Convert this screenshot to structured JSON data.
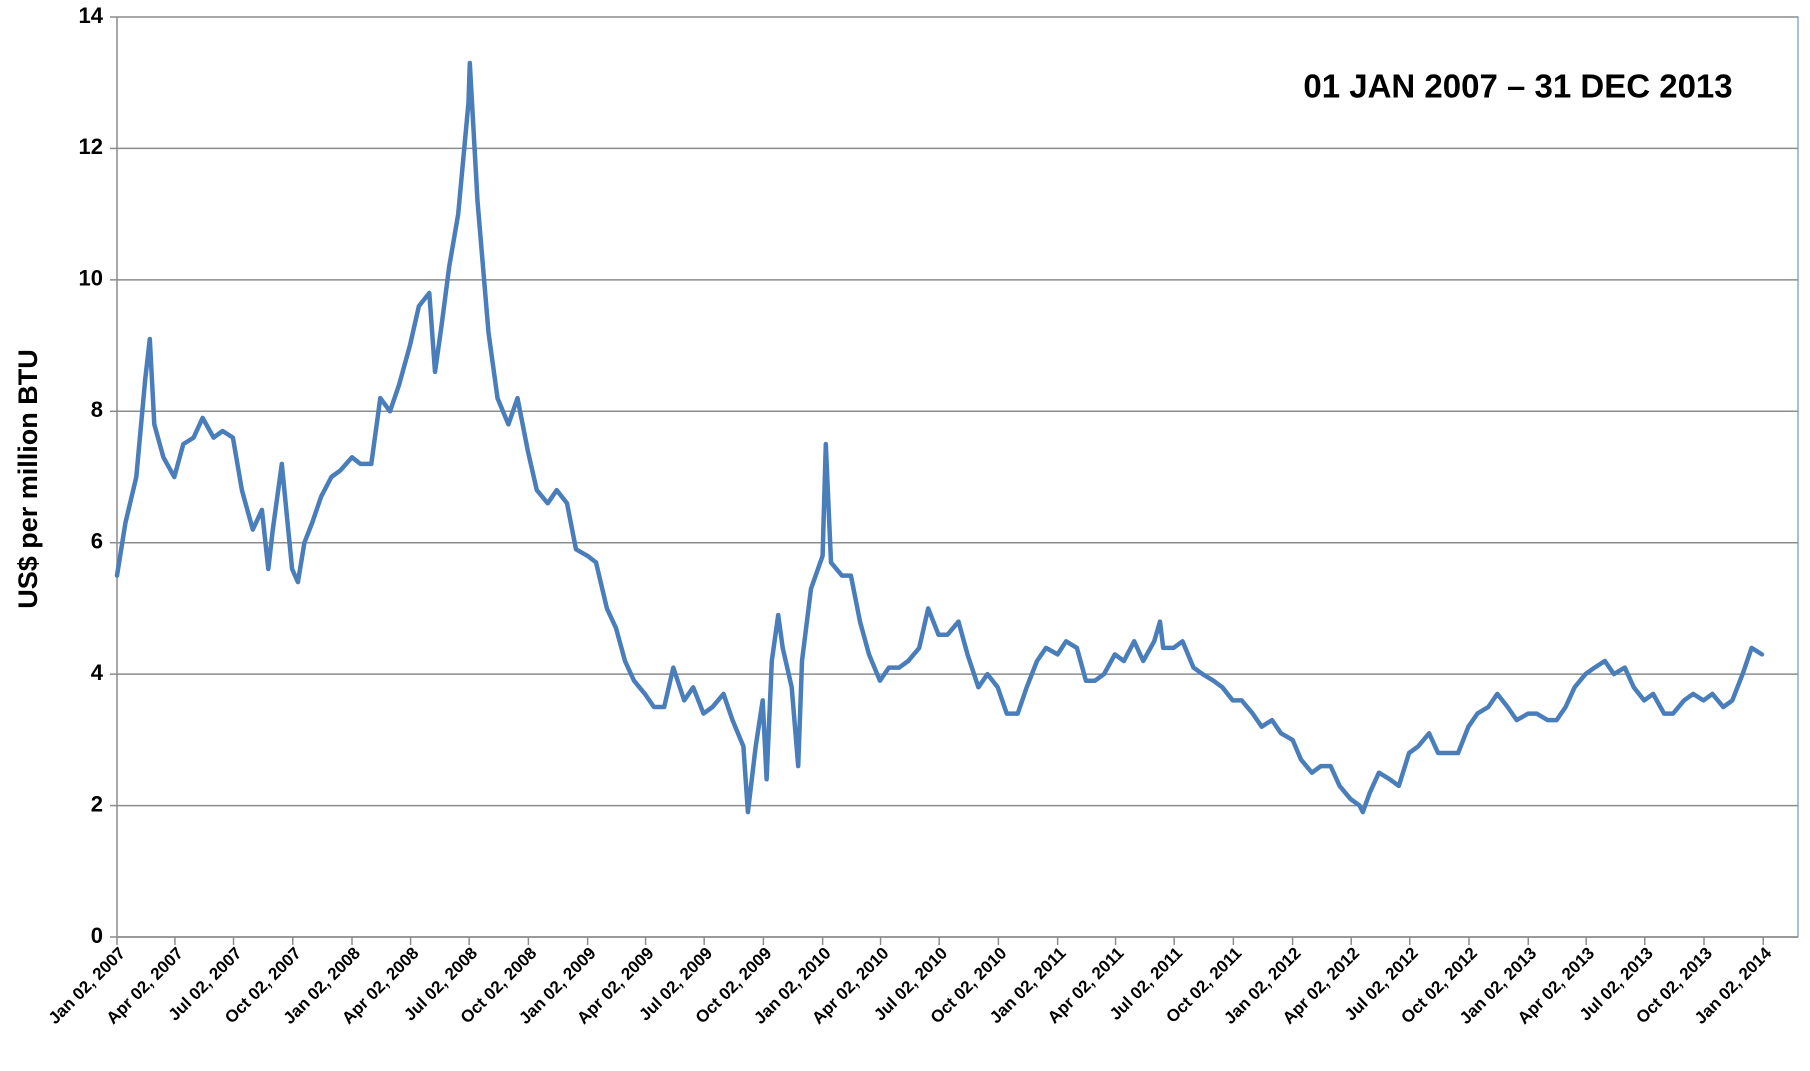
{
  "chart_data": {
    "type": "line",
    "annotation": "01 JAN 2007 – 31 DEC 2013",
    "y_label": "US$ per million BTU",
    "color": "#4a7ebb",
    "grid": true,
    "ylim": [
      0,
      14
    ],
    "yticks": [
      0,
      2,
      4,
      6,
      8,
      10,
      12,
      14
    ],
    "xlim": [
      "2007-01-02",
      "2014-02-25"
    ],
    "xticks": [
      {
        "value": "2007-01-02",
        "label": "Jan 02, 2007"
      },
      {
        "value": "2007-04-02",
        "label": "Apr 02, 2007"
      },
      {
        "value": "2007-07-02",
        "label": "Jul 02, 2007"
      },
      {
        "value": "2007-10-02",
        "label": "Oct 02, 2007"
      },
      {
        "value": "2008-01-02",
        "label": "Jan 02, 2008"
      },
      {
        "value": "2008-04-02",
        "label": "Apr 02, 2008"
      },
      {
        "value": "2008-07-02",
        "label": "Jul 02, 2008"
      },
      {
        "value": "2008-10-02",
        "label": "Oct 02, 2008"
      },
      {
        "value": "2009-01-02",
        "label": "Jan 02, 2009"
      },
      {
        "value": "2009-04-02",
        "label": "Apr 02, 2009"
      },
      {
        "value": "2009-07-02",
        "label": "Jul 02, 2009"
      },
      {
        "value": "2009-10-02",
        "label": "Oct 02, 2009"
      },
      {
        "value": "2010-01-02",
        "label": "Jan 02, 2010"
      },
      {
        "value": "2010-04-02",
        "label": "Apr 02, 2010"
      },
      {
        "value": "2010-07-02",
        "label": "Jul 02, 2010"
      },
      {
        "value": "2010-10-02",
        "label": "Oct 02, 2010"
      },
      {
        "value": "2011-01-02",
        "label": "Jan 02, 2011"
      },
      {
        "value": "2011-04-02",
        "label": "Apr 02, 2011"
      },
      {
        "value": "2011-07-02",
        "label": "Jul 02, 2011"
      },
      {
        "value": "2011-10-02",
        "label": "Oct 02, 2011"
      },
      {
        "value": "2012-01-02",
        "label": "Jan 02, 2012"
      },
      {
        "value": "2012-04-02",
        "label": "Apr 02, 2012"
      },
      {
        "value": "2012-07-02",
        "label": "Jul 02, 2012"
      },
      {
        "value": "2012-10-02",
        "label": "Oct 02, 2012"
      },
      {
        "value": "2013-01-02",
        "label": "Jan 02, 2013"
      },
      {
        "value": "2013-04-02",
        "label": "Apr 02, 2013"
      },
      {
        "value": "2013-07-02",
        "label": "Jul 02, 2013"
      },
      {
        "value": "2013-10-02",
        "label": "Oct 02, 2013"
      },
      {
        "value": "2014-01-02",
        "label": "Jan 02, 2014"
      }
    ],
    "x": [
      "2007-01-02",
      "2007-01-15",
      "2007-02-01",
      "2007-02-15",
      "2007-02-22",
      "2007-03-01",
      "2007-03-15",
      "2007-04-01",
      "2007-04-15",
      "2007-05-01",
      "2007-05-15",
      "2007-06-01",
      "2007-06-15",
      "2007-07-01",
      "2007-07-15",
      "2007-08-01",
      "2007-08-15",
      "2007-08-25",
      "2007-09-01",
      "2007-09-15",
      "2007-10-01",
      "2007-10-10",
      "2007-10-20",
      "2007-11-01",
      "2007-11-15",
      "2007-12-01",
      "2007-12-15",
      "2008-01-02",
      "2008-01-15",
      "2008-02-01",
      "2008-02-15",
      "2008-03-01",
      "2008-03-15",
      "2008-04-01",
      "2008-04-15",
      "2008-05-01",
      "2008-05-10",
      "2008-05-20",
      "2008-06-01",
      "2008-06-15",
      "2008-07-01",
      "2008-07-03",
      "2008-07-15",
      "2008-08-01",
      "2008-08-15",
      "2008-09-01",
      "2008-09-15",
      "2008-10-01",
      "2008-10-15",
      "2008-11-01",
      "2008-11-15",
      "2008-12-01",
      "2008-12-15",
      "2009-01-02",
      "2009-01-15",
      "2009-02-01",
      "2009-02-15",
      "2009-03-01",
      "2009-03-15",
      "2009-04-01",
      "2009-04-15",
      "2009-05-01",
      "2009-05-15",
      "2009-06-01",
      "2009-06-15",
      "2009-07-01",
      "2009-07-15",
      "2009-08-01",
      "2009-08-15",
      "2009-09-01",
      "2009-09-08",
      "2009-09-20",
      "2009-10-01",
      "2009-10-07",
      "2009-10-15",
      "2009-10-25",
      "2009-11-01",
      "2009-11-15",
      "2009-11-25",
      "2009-12-01",
      "2009-12-15",
      "2010-01-02",
      "2010-01-07",
      "2010-01-15",
      "2010-02-01",
      "2010-02-15",
      "2010-03-01",
      "2010-03-15",
      "2010-04-01",
      "2010-04-15",
      "2010-05-01",
      "2010-05-15",
      "2010-06-01",
      "2010-06-15",
      "2010-07-01",
      "2010-07-15",
      "2010-08-01",
      "2010-08-15",
      "2010-09-01",
      "2010-09-15",
      "2010-10-01",
      "2010-10-15",
      "2010-11-01",
      "2010-11-15",
      "2010-12-01",
      "2010-12-15",
      "2011-01-02",
      "2011-01-15",
      "2011-02-01",
      "2011-02-15",
      "2011-03-01",
      "2011-03-15",
      "2011-04-01",
      "2011-04-15",
      "2011-05-01",
      "2011-05-15",
      "2011-06-01",
      "2011-06-10",
      "2011-06-15",
      "2011-07-01",
      "2011-07-15",
      "2011-08-01",
      "2011-08-15",
      "2011-09-01",
      "2011-09-15",
      "2011-10-01",
      "2011-10-15",
      "2011-11-01",
      "2011-11-15",
      "2011-12-01",
      "2011-12-15",
      "2012-01-02",
      "2012-01-15",
      "2012-02-01",
      "2012-02-15",
      "2012-03-01",
      "2012-03-15",
      "2012-04-01",
      "2012-04-15",
      "2012-04-20",
      "2012-05-01",
      "2012-05-15",
      "2012-06-01",
      "2012-06-15",
      "2012-07-01",
      "2012-07-15",
      "2012-08-01",
      "2012-08-15",
      "2012-09-01",
      "2012-09-15",
      "2012-10-01",
      "2012-10-15",
      "2012-11-01",
      "2012-11-15",
      "2012-12-01",
      "2012-12-15",
      "2013-01-02",
      "2013-01-15",
      "2013-02-01",
      "2013-02-15",
      "2013-03-01",
      "2013-03-15",
      "2013-04-01",
      "2013-04-15",
      "2013-05-01",
      "2013-05-15",
      "2013-06-01",
      "2013-06-15",
      "2013-07-01",
      "2013-07-15",
      "2013-08-01",
      "2013-08-15",
      "2013-09-01",
      "2013-09-15",
      "2013-10-01",
      "2013-10-15",
      "2013-11-01",
      "2013-11-15",
      "2013-12-01",
      "2013-12-15",
      "2013-12-31"
    ],
    "values": [
      5.5,
      6.3,
      7.0,
      8.5,
      9.1,
      7.8,
      7.3,
      7.0,
      7.5,
      7.6,
      7.9,
      7.6,
      7.7,
      7.6,
      6.8,
      6.2,
      6.5,
      5.6,
      6.2,
      7.2,
      5.6,
      5.4,
      6.0,
      6.3,
      6.7,
      7.0,
      7.1,
      7.3,
      7.2,
      7.2,
      8.2,
      8.0,
      8.4,
      9.0,
      9.6,
      9.8,
      8.6,
      9.3,
      10.2,
      11.0,
      12.7,
      13.3,
      11.2,
      9.2,
      8.2,
      7.8,
      8.2,
      7.4,
      6.8,
      6.6,
      6.8,
      6.6,
      5.9,
      5.8,
      5.7,
      5.0,
      4.7,
      4.2,
      3.9,
      3.7,
      3.5,
      3.5,
      4.1,
      3.6,
      3.8,
      3.4,
      3.5,
      3.7,
      3.3,
      2.9,
      1.9,
      2.9,
      3.6,
      2.4,
      4.2,
      4.9,
      4.4,
      3.8,
      2.6,
      4.2,
      5.3,
      5.8,
      7.5,
      5.7,
      5.5,
      5.5,
      4.8,
      4.3,
      3.9,
      4.1,
      4.1,
      4.2,
      4.4,
      5.0,
      4.6,
      4.6,
      4.8,
      4.3,
      3.8,
      4.0,
      3.8,
      3.4,
      3.4,
      3.8,
      4.2,
      4.4,
      4.3,
      4.5,
      4.4,
      3.9,
      3.9,
      4.0,
      4.3,
      4.2,
      4.5,
      4.2,
      4.5,
      4.8,
      4.4,
      4.4,
      4.5,
      4.1,
      4.0,
      3.9,
      3.8,
      3.6,
      3.6,
      3.4,
      3.2,
      3.3,
      3.1,
      3.0,
      2.7,
      2.5,
      2.6,
      2.6,
      2.3,
      2.1,
      2.0,
      1.9,
      2.2,
      2.5,
      2.4,
      2.3,
      2.8,
      2.9,
      3.1,
      2.8,
      2.8,
      2.8,
      3.2,
      3.4,
      3.5,
      3.7,
      3.5,
      3.3,
      3.4,
      3.4,
      3.3,
      3.3,
      3.5,
      3.8,
      4.0,
      4.1,
      4.2,
      4.0,
      4.1,
      3.8,
      3.6,
      3.7,
      3.4,
      3.4,
      3.6,
      3.7,
      3.6,
      3.7,
      3.5,
      3.6,
      4.0,
      4.4,
      4.3
    ]
  }
}
